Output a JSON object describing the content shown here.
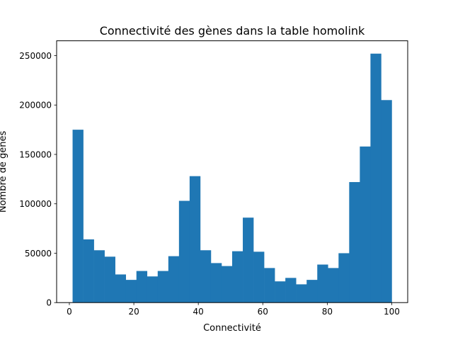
{
  "chart_data": {
    "type": "bar",
    "title": "Connectivité des gènes dans la table homolink",
    "xlabel": "Connectivité",
    "ylabel": "Nombre de gènes",
    "xlim": [
      -3.95,
      104.95
    ],
    "ylim": [
      0,
      265000
    ],
    "x_ticks": [
      0,
      20,
      40,
      60,
      80,
      100
    ],
    "x_tick_labels": [
      "0",
      "20",
      "40",
      "60",
      "80",
      "100"
    ],
    "y_ticks": [
      0,
      50000,
      100000,
      150000,
      200000,
      250000
    ],
    "y_tick_labels": [
      "0",
      "50000",
      "100000",
      "150000",
      "200000",
      "250000"
    ],
    "bin_edges": [
      1,
      4.3,
      7.6,
      10.9,
      14.2,
      17.5,
      20.8,
      24.1,
      27.4,
      30.7,
      34.0,
      37.3,
      40.6,
      43.9,
      47.2,
      50.5,
      53.8,
      57.1,
      60.4,
      63.7,
      67.0,
      70.3,
      73.6,
      76.9,
      80.2,
      83.5,
      86.8,
      90.1,
      93.4,
      96.7,
      100
    ],
    "values": [
      175000,
      64000,
      53000,
      46500,
      28500,
      23000,
      32000,
      26500,
      32000,
      47000,
      103000,
      128000,
      53000,
      40000,
      37000,
      52000,
      86000,
      51500,
      35000,
      21500,
      25000,
      18500,
      23000,
      38500,
      35000,
      50000,
      122000,
      158000,
      252000,
      205000
    ],
    "color": "#1f77b4",
    "grid": false,
    "legend": "none"
  }
}
